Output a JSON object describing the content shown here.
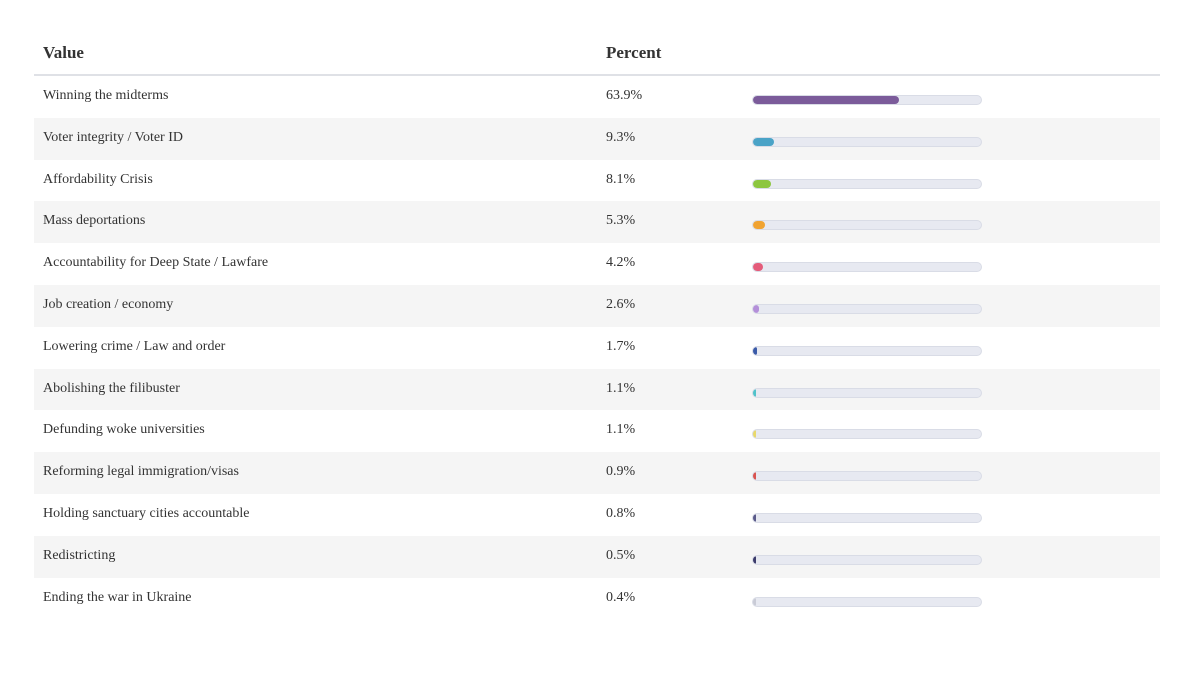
{
  "header": {
    "value_label": "Value",
    "percent_label": "Percent"
  },
  "chart_data": {
    "type": "table",
    "columns": [
      "Value",
      "Percent"
    ],
    "rows": [
      {
        "label": "Winning the midterms",
        "percent_text": "63.9%",
        "value": 63.9,
        "color": "#7b5b9a"
      },
      {
        "label": "Voter integrity / Voter ID",
        "percent_text": "9.3%",
        "value": 9.3,
        "color": "#4aa3c7"
      },
      {
        "label": "Affordability Crisis",
        "percent_text": "8.1%",
        "value": 8.1,
        "color": "#8cc63f"
      },
      {
        "label": "Mass deportations",
        "percent_text": "5.3%",
        "value": 5.3,
        "color": "#f0a332"
      },
      {
        "label": "Accountability for Deep State / Lawfare",
        "percent_text": "4.2%",
        "value": 4.2,
        "color": "#e45c7a"
      },
      {
        "label": "Job creation / economy",
        "percent_text": "2.6%",
        "value": 2.6,
        "color": "#b48fd9"
      },
      {
        "label": "Lowering crime / Law and order",
        "percent_text": "1.7%",
        "value": 1.7,
        "color": "#3a5aa8"
      },
      {
        "label": "Abolishing the filibuster",
        "percent_text": "1.1%",
        "value": 1.1,
        "color": "#4fc2c9"
      },
      {
        "label": "Defunding woke universities",
        "percent_text": "1.1%",
        "value": 1.1,
        "color": "#e8d86a"
      },
      {
        "label": "Reforming legal immigration/visas",
        "percent_text": "0.9%",
        "value": 0.9,
        "color": "#d9534f"
      },
      {
        "label": "Holding sanctuary cities accountable",
        "percent_text": "0.8%",
        "value": 0.8,
        "color": "#5a5a8a"
      },
      {
        "label": "Redistricting",
        "percent_text": "0.5%",
        "value": 0.5,
        "color": "#3b3b6b"
      },
      {
        "label": "Ending the war in Ukraine",
        "percent_text": "0.4%",
        "value": 0.4,
        "color": "#c9cbd6"
      }
    ],
    "bar_max": 100
  }
}
